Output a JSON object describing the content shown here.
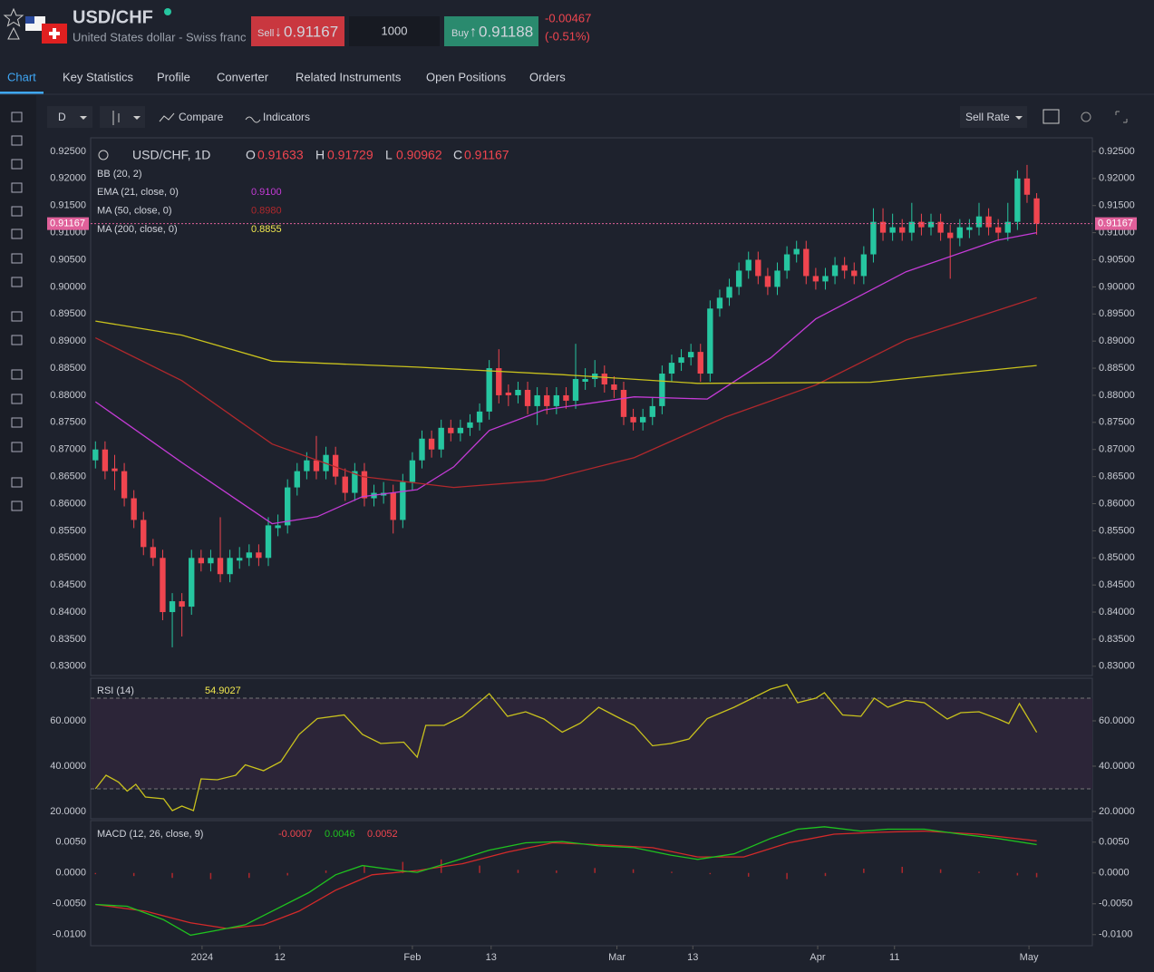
{
  "header": {
    "symbol": "USD/CHF",
    "name": "United States dollar - Swiss franc",
    "sell_label": "Sell",
    "sell_price": "0.91167",
    "quantity": "1000",
    "buy_label": "Buy",
    "buy_price": "0.91188",
    "change": "-0.00467",
    "change_pct": "(-0.51%)"
  },
  "tabs": [
    "Chart",
    "Key Statistics",
    "Profile",
    "Converter",
    "Related Instruments",
    "Open Positions",
    "Orders"
  ],
  "toolbar": {
    "interval": "D",
    "compare": "Compare",
    "indicators": "Indicators",
    "sell_rate": "Sell Rate"
  },
  "chart_data": {
    "type": "candlestick",
    "title": "USD/CHF, 1D",
    "legend": {
      "o_label": "O",
      "o": "0.91633",
      "h_label": "H",
      "h": "0.91729",
      "l_label": "L",
      "l": "0.90962",
      "c_label": "C",
      "c": "0.91167",
      "bb": "BB (20, 2)"
    },
    "up_color": "#26c6a0",
    "down_color": "#f0454f",
    "candles": [
      [
        0.868,
        0.8715,
        0.8665,
        0.87
      ],
      [
        0.87,
        0.8715,
        0.8645,
        0.866
      ],
      [
        0.8665,
        0.869,
        0.8625,
        0.866
      ],
      [
        0.866,
        0.8675,
        0.8595,
        0.861
      ],
      [
        0.861,
        0.8625,
        0.8555,
        0.857
      ],
      [
        0.857,
        0.8585,
        0.8505,
        0.852
      ],
      [
        0.852,
        0.8535,
        0.8485,
        0.85
      ],
      [
        0.85,
        0.8515,
        0.8385,
        0.84
      ],
      [
        0.84,
        0.8435,
        0.8335,
        0.842
      ],
      [
        0.842,
        0.8435,
        0.8355,
        0.841
      ],
      [
        0.841,
        0.8515,
        0.8395,
        0.85
      ],
      [
        0.85,
        0.8515,
        0.8475,
        0.849
      ],
      [
        0.849,
        0.8515,
        0.8475,
        0.85
      ],
      [
        0.85,
        0.8575,
        0.8455,
        0.847
      ],
      [
        0.847,
        0.8515,
        0.8455,
        0.85
      ],
      [
        0.8495,
        0.852,
        0.848,
        0.85
      ],
      [
        0.85,
        0.8525,
        0.8485,
        0.851
      ],
      [
        0.851,
        0.8525,
        0.8485,
        0.85
      ],
      [
        0.85,
        0.8575,
        0.8485,
        0.856
      ],
      [
        0.8555,
        0.858,
        0.854,
        0.856
      ],
      [
        0.856,
        0.8645,
        0.8545,
        0.863
      ],
      [
        0.863,
        0.8675,
        0.8615,
        0.866
      ],
      [
        0.866,
        0.8695,
        0.8645,
        0.868
      ],
      [
        0.868,
        0.8725,
        0.8645,
        0.866
      ],
      [
        0.866,
        0.8705,
        0.8645,
        0.869
      ],
      [
        0.869,
        0.8705,
        0.8635,
        0.865
      ],
      [
        0.865,
        0.8665,
        0.8605,
        0.862
      ],
      [
        0.862,
        0.8675,
        0.8605,
        0.866
      ],
      [
        0.866,
        0.8675,
        0.8595,
        0.861
      ],
      [
        0.861,
        0.8635,
        0.8595,
        0.862
      ],
      [
        0.8615,
        0.864,
        0.86,
        0.862
      ],
      [
        0.862,
        0.8635,
        0.8545,
        0.857
      ],
      [
        0.857,
        0.8655,
        0.8555,
        0.864
      ],
      [
        0.864,
        0.8695,
        0.8625,
        0.868
      ],
      [
        0.868,
        0.8735,
        0.8665,
        0.872
      ],
      [
        0.872,
        0.8735,
        0.8685,
        0.87
      ],
      [
        0.87,
        0.8755,
        0.8685,
        0.874
      ],
      [
        0.874,
        0.8755,
        0.8715,
        0.873
      ],
      [
        0.873,
        0.8755,
        0.8715,
        0.874
      ],
      [
        0.874,
        0.8765,
        0.8725,
        0.875
      ],
      [
        0.875,
        0.8785,
        0.8735,
        0.877
      ],
      [
        0.877,
        0.8865,
        0.8755,
        0.885
      ],
      [
        0.885,
        0.8885,
        0.8785,
        0.88
      ],
      [
        0.8805,
        0.882,
        0.878,
        0.88
      ],
      [
        0.88,
        0.8825,
        0.8785,
        0.881
      ],
      [
        0.881,
        0.8825,
        0.8765,
        0.878
      ],
      [
        0.878,
        0.8815,
        0.8745,
        0.88
      ],
      [
        0.88,
        0.8815,
        0.8765,
        0.878
      ],
      [
        0.878,
        0.8815,
        0.8765,
        0.88
      ],
      [
        0.88,
        0.8815,
        0.8775,
        0.879
      ],
      [
        0.879,
        0.8895,
        0.8775,
        0.883
      ],
      [
        0.8825,
        0.885,
        0.881,
        0.883
      ],
      [
        0.883,
        0.8865,
        0.8815,
        0.884
      ],
      [
        0.884,
        0.8855,
        0.8805,
        0.882
      ],
      [
        0.882,
        0.8835,
        0.8795,
        0.881
      ],
      [
        0.881,
        0.8825,
        0.8745,
        0.876
      ],
      [
        0.876,
        0.8775,
        0.8735,
        0.875
      ],
      [
        0.875,
        0.8775,
        0.8735,
        0.876
      ],
      [
        0.876,
        0.8795,
        0.8745,
        0.878
      ],
      [
        0.878,
        0.8855,
        0.8765,
        0.884
      ],
      [
        0.884,
        0.8875,
        0.8825,
        0.886
      ],
      [
        0.886,
        0.8885,
        0.8845,
        0.887
      ],
      [
        0.887,
        0.8895,
        0.8855,
        0.888
      ],
      [
        0.888,
        0.8895,
        0.8825,
        0.884
      ],
      [
        0.884,
        0.8975,
        0.8825,
        0.896
      ],
      [
        0.896,
        0.8995,
        0.8945,
        0.898
      ],
      [
        0.898,
        0.9015,
        0.8965,
        0.9
      ],
      [
        0.9,
        0.9045,
        0.8985,
        0.903
      ],
      [
        0.903,
        0.9065,
        0.9015,
        0.905
      ],
      [
        0.905,
        0.9065,
        0.9005,
        0.902
      ],
      [
        0.902,
        0.9035,
        0.8985,
        0.9
      ],
      [
        0.9,
        0.9045,
        0.8985,
        0.903
      ],
      [
        0.903,
        0.9075,
        0.9015,
        0.906
      ],
      [
        0.906,
        0.9085,
        0.9045,
        0.907
      ],
      [
        0.907,
        0.9085,
        0.9005,
        0.902
      ],
      [
        0.902,
        0.9035,
        0.8995,
        0.901
      ],
      [
        0.901,
        0.9035,
        0.8995,
        0.902
      ],
      [
        0.902,
        0.9055,
        0.9005,
        0.904
      ],
      [
        0.904,
        0.9055,
        0.9015,
        0.903
      ],
      [
        0.903,
        0.9045,
        0.9005,
        0.902
      ],
      [
        0.902,
        0.9075,
        0.9005,
        0.906
      ],
      [
        0.906,
        0.9145,
        0.9045,
        0.912
      ],
      [
        0.912,
        0.9145,
        0.9085,
        0.91
      ],
      [
        0.91,
        0.9135,
        0.9085,
        0.911
      ],
      [
        0.911,
        0.9125,
        0.9085,
        0.91
      ],
      [
        0.91,
        0.9155,
        0.9085,
        0.912
      ],
      [
        0.912,
        0.9135,
        0.9095,
        0.911
      ],
      [
        0.911,
        0.9135,
        0.9095,
        0.912
      ],
      [
        0.912,
        0.9135,
        0.9085,
        0.91
      ],
      [
        0.91,
        0.9115,
        0.9015,
        0.909
      ],
      [
        0.909,
        0.9125,
        0.9075,
        0.911
      ],
      [
        0.9105,
        0.9125,
        0.909,
        0.911
      ],
      [
        0.911,
        0.9155,
        0.9095,
        0.913
      ],
      [
        0.913,
        0.9145,
        0.9095,
        0.911
      ],
      [
        0.911,
        0.9125,
        0.9085,
        0.91
      ],
      [
        0.91,
        0.9155,
        0.9085,
        0.912
      ],
      [
        0.912,
        0.9215,
        0.9105,
        0.92
      ],
      [
        0.92,
        0.9225,
        0.9155,
        0.917
      ],
      [
        0.91633,
        0.91729,
        0.90962,
        0.91167
      ]
    ],
    "last_price": {
      "value": 0.91167,
      "label": "0.91167"
    },
    "series": [
      {
        "name": "EMA (21, close, 0)",
        "color": "#c43bd6",
        "value_label": "0.9100",
        "x": [
          0,
          9,
          18.4,
          23.1,
          27.8,
          33.5,
          37.3,
          41,
          46.7,
          56.1,
          63.7,
          70.3,
          75,
          84.4,
          93.9,
          98
        ],
        "values": [
          0.8788,
          0.8676,
          0.8563,
          0.8576,
          0.8613,
          0.8626,
          0.8668,
          0.8735,
          0.8773,
          0.8797,
          0.8793,
          0.8869,
          0.8941,
          0.9028,
          0.9086,
          0.91
        ]
      },
      {
        "name": "MA (50, close, 0)",
        "color": "#b0282c",
        "value_label": "0.8980",
        "x": [
          0,
          9,
          18.4,
          27.8,
          37.3,
          46.7,
          56.1,
          65.6,
          75,
          84.4,
          98
        ],
        "values": [
          0.8906,
          0.8827,
          0.871,
          0.865,
          0.863,
          0.8643,
          0.8685,
          0.876,
          0.8819,
          0.8902,
          0.898
        ]
      },
      {
        "name": "MA (200, close, 0)",
        "color": "#c9c21d",
        "value_label": "0.8855",
        "x": [
          0,
          9,
          18.4,
          33.5,
          48.6,
          62.7,
          80.7,
          98
        ],
        "values": [
          0.8937,
          0.8911,
          0.8863,
          0.8852,
          0.8838,
          0.8822,
          0.8824,
          0.8855
        ]
      }
    ],
    "xlim": [
      -0.5,
      103.8
    ],
    "ylim": [
      0.8283,
      0.9275
    ],
    "yticks": [
      {
        "value": 0.925,
        "label": "0.92500"
      },
      {
        "value": 0.92,
        "label": "0.92000"
      },
      {
        "value": 0.915,
        "label": "0.91500"
      },
      {
        "value": 0.91,
        "label": "0.91000"
      },
      {
        "value": 0.905,
        "label": "0.90500"
      },
      {
        "value": 0.9,
        "label": "0.90000"
      },
      {
        "value": 0.895,
        "label": "0.89500"
      },
      {
        "value": 0.89,
        "label": "0.89000"
      },
      {
        "value": 0.885,
        "label": "0.88500"
      },
      {
        "value": 0.88,
        "label": "0.88000"
      },
      {
        "value": 0.875,
        "label": "0.87500"
      },
      {
        "value": 0.87,
        "label": "0.87000"
      },
      {
        "value": 0.865,
        "label": "0.86500"
      },
      {
        "value": 0.86,
        "label": "0.86000"
      },
      {
        "value": 0.855,
        "label": "0.85500"
      },
      {
        "value": 0.85,
        "label": "0.85000"
      },
      {
        "value": 0.845,
        "label": "0.84500"
      },
      {
        "value": 0.84,
        "label": "0.84000"
      },
      {
        "value": 0.835,
        "label": "0.83500"
      },
      {
        "value": 0.83,
        "label": "0.83000"
      }
    ],
    "xticks": [
      {
        "value": 11.1,
        "label": "2024"
      },
      {
        "value": 19.2,
        "label": "12"
      },
      {
        "value": 33,
        "label": "Feb"
      },
      {
        "value": 41.2,
        "label": "13"
      },
      {
        "value": 54.3,
        "label": "Mar"
      },
      {
        "value": 62.2,
        "label": "13"
      },
      {
        "value": 75.2,
        "label": "Apr"
      },
      {
        "value": 83.2,
        "label": "11"
      },
      {
        "value": 97.2,
        "label": "May"
      }
    ],
    "rsi": {
      "name": "RSI (14)",
      "color": "#c9c21d",
      "value_label": "54.9027",
      "ylim": [
        16.8,
        78.8
      ],
      "levels": [
        70,
        30
      ],
      "yticks": [
        {
          "value": 60,
          "label": "60.0000"
        },
        {
          "value": 40,
          "label": "40.0000"
        },
        {
          "value": 20,
          "label": "20.0000"
        }
      ],
      "x": [
        0,
        1.1,
        2.4,
        3.3,
        4.2,
        5.2,
        7.1,
        8,
        9,
        10.2,
        11,
        12.7,
        14.6,
        15.6,
        17.5,
        19.3,
        21.2,
        23.1,
        25.9,
        27.8,
        29.7,
        32.1,
        33.5,
        34.4,
        36.3,
        38.2,
        41,
        42.9,
        44.8,
        46.7,
        48.6,
        50.5,
        52.4,
        54.2,
        56.1,
        58,
        59.9,
        61.8,
        63.7,
        66.5,
        68.4,
        70.3,
        72,
        73.1,
        75,
        75.9,
        77.8,
        79.7,
        81.1,
        82.5,
        84.4,
        86.3,
        88.7,
        90.1,
        92,
        93.9,
        95.1,
        96.2,
        98
      ],
      "values": [
        30,
        36,
        33,
        29,
        32,
        26.4,
        25.6,
        20.4,
        22.4,
        20.4,
        34.4,
        34,
        36,
        40.6,
        38,
        42,
        54,
        61,
        62.6,
        54,
        50,
        50.6,
        44,
        58,
        58,
        62,
        72,
        62,
        64,
        60.8,
        55,
        59,
        66,
        62,
        58,
        49,
        50,
        52,
        61,
        66,
        70,
        74,
        76,
        68,
        70,
        72.4,
        62.6,
        62,
        70,
        66,
        69,
        68,
        60.8,
        63.6,
        64,
        61,
        58.8,
        67.6,
        54.9027
      ]
    },
    "macd": {
      "name": "MACD (12, 26, close, 9)",
      "ylim": [
        -0.0118,
        0.0085
      ],
      "yticks": [
        {
          "value": 0.005,
          "label": "0.0050"
        },
        {
          "value": 0,
          "label": "0.0000"
        },
        {
          "value": -0.005,
          "label": "-0.0050"
        },
        {
          "value": -0.01,
          "label": "-0.0100"
        }
      ],
      "histogram": {
        "color": "#b0282c",
        "value_label": "-0.0007",
        "x": [
          0,
          4,
          8,
          12,
          16,
          20,
          24,
          28,
          32,
          36,
          40,
          44,
          48,
          52,
          56,
          60,
          64,
          68,
          72,
          76,
          80,
          84,
          88,
          92,
          96,
          98
        ],
        "values": [
          -0.0002,
          -0.0005,
          -0.0008,
          -0.001,
          -0.0008,
          -0.0004,
          0.0004,
          0.0012,
          0.0018,
          0.0022,
          0.0012,
          0.0005,
          0.0004,
          0.0008,
          0.0006,
          0.0002,
          -0.0002,
          -0.0006,
          -0.001,
          -0.0005,
          0.0007,
          0.001,
          0.0006,
          0.0002,
          -0.0004,
          -0.0007
        ]
      },
      "macd_line": {
        "color": "#1fc21f",
        "value_label": "0.0046",
        "x": [
          0,
          3.3,
          7.1,
          9.9,
          12.7,
          15.6,
          18.4,
          22.2,
          25,
          27.8,
          31.6,
          33.5,
          37.3,
          41,
          44.8,
          48.6,
          52.4,
          56.1,
          59.9,
          62.7,
          66.5,
          70.3,
          73.1,
          75.9,
          79.7,
          82.5,
          86.3,
          90.1,
          93.9,
          98
        ],
        "values": [
          -0.0051,
          -0.0054,
          -0.0076,
          -0.0101,
          -0.0093,
          -0.0084,
          -0.0062,
          -0.0032,
          -0.0003,
          0.0012,
          0.0004,
          0.0001,
          0.0019,
          0.0037,
          0.0049,
          0.0051,
          0.0044,
          0.0041,
          0.0029,
          0.0022,
          0.0031,
          0.0056,
          0.0071,
          0.0075,
          0.0068,
          0.0071,
          0.0071,
          0.0063,
          0.0056,
          0.0046
        ]
      },
      "signal": {
        "color": "#d42a2a",
        "value_label": "0.0052",
        "x": [
          0,
          5.2,
          9.9,
          13.7,
          17.5,
          21.2,
          25,
          28.8,
          33.5,
          38.2,
          42.9,
          47.6,
          52.4,
          58,
          62.7,
          67.5,
          72.2,
          76.9,
          81.6,
          86.3,
          91.9,
          98
        ],
        "values": [
          -0.0051,
          -0.0062,
          -0.0081,
          -0.009,
          -0.0084,
          -0.0062,
          -0.0028,
          -0.0003,
          0.0004,
          0.0015,
          0.0034,
          0.0049,
          0.0046,
          0.0041,
          0.0026,
          0.0026,
          0.0049,
          0.0063,
          0.0066,
          0.0068,
          0.0063,
          0.0052
        ]
      }
    }
  }
}
